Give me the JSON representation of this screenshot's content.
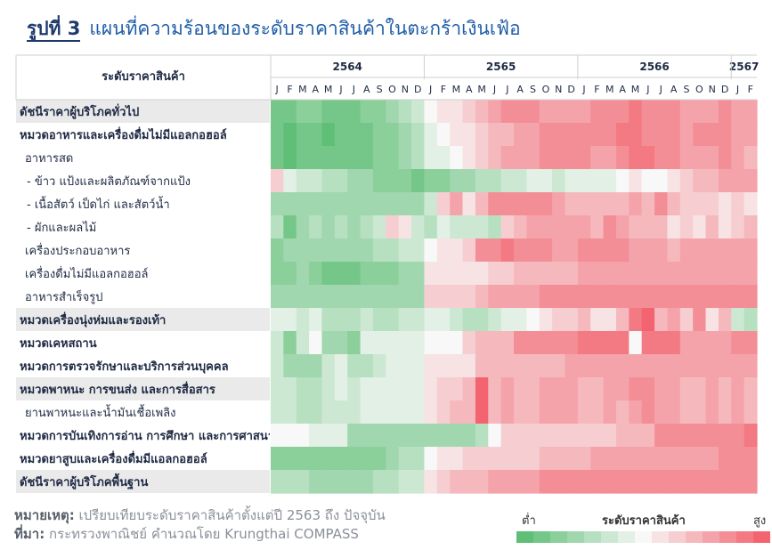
{
  "title": {
    "figure_no": "รูปที่ 3",
    "text": "แผนที่ความร้อนของระดับราคาสินค้าในตะกร้าเงินเฟ้อ"
  },
  "footer": {
    "note_label": "หมายเหตุ:",
    "note_text": "เปรียบเทียบระดับราคาสินค้าตั้งแต่ปี 2563 ถึง ปัจจุบัน",
    "source_label": "ที่มา:",
    "source_text": "กระทรวงพาณิชย์ คำนวณโดย Krungthai COMPASS"
  },
  "legend": {
    "low": "ต่ำ",
    "title": "ระดับราคาสินค้า",
    "high": "สูง",
    "steps": 15
  },
  "colors": {
    "low": "#5fbf76",
    "mid": "#f8f8f8",
    "high": "#f2646f",
    "row_label_bg": "#eaeaea"
  },
  "chart_data": {
    "type": "heatmap",
    "row_header": "ระดับราคาสินค้า",
    "years": [
      {
        "label": "2564",
        "months": 12
      },
      {
        "label": "2565",
        "months": 12
      },
      {
        "label": "2566",
        "months": 12
      },
      {
        "label": "2567",
        "months": 2
      }
    ],
    "month_labels": [
      "J",
      "F",
      "M",
      "A",
      "M",
      "J",
      "J",
      "A",
      "S",
      "O",
      "N",
      "D",
      "J",
      "F",
      "M",
      "A",
      "M",
      "J",
      "J",
      "A",
      "S",
      "O",
      "N",
      "D",
      "J",
      "F",
      "M",
      "A",
      "M",
      "J",
      "J",
      "A",
      "S",
      "O",
      "N",
      "D",
      "J",
      "F"
    ],
    "value_range": [
      0,
      14
    ],
    "rows": [
      {
        "label": "ดัชนีราคาผู้บริโภคทั่วไป",
        "bold": true,
        "shaded": true,
        "values": [
          1,
          1,
          2,
          2,
          1,
          1,
          1,
          2,
          2,
          3,
          4,
          5,
          7,
          8,
          8,
          9,
          10,
          11,
          12,
          12,
          12,
          11,
          11,
          11,
          11,
          12,
          12,
          12,
          13,
          12,
          12,
          12,
          11,
          11,
          11,
          12,
          11,
          11
        ]
      },
      {
        "label": "หมวดอาหารและเครื่องดื่มไม่มีแอลกอฮอล์",
        "bold": true,
        "shaded": false,
        "values": [
          1,
          0,
          1,
          1,
          0,
          1,
          1,
          1,
          2,
          2,
          3,
          4,
          6,
          7,
          8,
          8,
          9,
          10,
          10,
          11,
          11,
          12,
          12,
          12,
          12,
          12,
          12,
          13,
          13,
          12,
          12,
          12,
          11,
          12,
          12,
          12,
          11,
          11
        ]
      },
      {
        "label": "อาหารสด",
        "bold": false,
        "shaded": false,
        "values": [
          1,
          0,
          1,
          1,
          1,
          1,
          1,
          1,
          2,
          2,
          3,
          4,
          6,
          6,
          7,
          8,
          9,
          10,
          11,
          11,
          11,
          12,
          12,
          12,
          12,
          11,
          11,
          12,
          13,
          13,
          12,
          12,
          11,
          11,
          11,
          12,
          11,
          10
        ]
      },
      {
        "label": "- ข้าว แป้งและผลิตภัณฑ์จากแป้ง",
        "bold": false,
        "shaded": false,
        "values": [
          9,
          6,
          5,
          5,
          4,
          4,
          3,
          3,
          2,
          2,
          2,
          1,
          2,
          2,
          3,
          3,
          4,
          4,
          5,
          5,
          6,
          6,
          5,
          6,
          6,
          6,
          6,
          7,
          8,
          7,
          7,
          8,
          9,
          10,
          10,
          11,
          11,
          11
        ]
      },
      {
        "label": "- เนื้อสัตว์ เป็ดไก่ และสัตว์น้ำ",
        "bold": false,
        "shaded": false,
        "values": [
          3,
          3,
          3,
          3,
          3,
          3,
          3,
          3,
          3,
          3,
          3,
          3,
          5,
          9,
          11,
          8,
          10,
          12,
          12,
          12,
          12,
          12,
          11,
          10,
          10,
          10,
          10,
          10,
          11,
          10,
          12,
          10,
          9,
          9,
          9,
          8,
          9,
          8
        ]
      },
      {
        "label": "- ผักและผลไม้",
        "bold": false,
        "shaded": false,
        "values": [
          4,
          1,
          3,
          4,
          3,
          4,
          3,
          4,
          5,
          9,
          8,
          5,
          4,
          6,
          5,
          5,
          5,
          4,
          9,
          10,
          11,
          11,
          11,
          11,
          11,
          10,
          12,
          11,
          10,
          10,
          10,
          8,
          9,
          8,
          10,
          8,
          9,
          10
        ]
      },
      {
        "label": "เครื่องประกอบอาหาร",
        "bold": false,
        "shaded": false,
        "values": [
          2,
          3,
          3,
          3,
          3,
          3,
          3,
          3,
          4,
          4,
          5,
          5,
          7,
          8,
          8,
          9,
          12,
          12,
          13,
          12,
          12,
          12,
          11,
          11,
          12,
          12,
          12,
          12,
          11,
          11,
          11,
          10,
          11,
          11,
          11,
          11,
          11,
          11
        ]
      },
      {
        "label": "เครื่องดื่มไม่มีแอลกอฮอล์",
        "bold": false,
        "shaded": false,
        "values": [
          2,
          2,
          3,
          2,
          1,
          1,
          1,
          2,
          2,
          2,
          3,
          3,
          8,
          8,
          8,
          8,
          8,
          9,
          9,
          10,
          10,
          10,
          10,
          10,
          11,
          11,
          11,
          11,
          11,
          11,
          11,
          11,
          11,
          11,
          11,
          11,
          11,
          11
        ]
      },
      {
        "label": "อาหารสำเร็จรูป",
        "bold": false,
        "shaded": false,
        "values": [
          3,
          3,
          3,
          3,
          3,
          3,
          3,
          3,
          3,
          3,
          3,
          3,
          9,
          9,
          9,
          9,
          10,
          11,
          11,
          11,
          11,
          12,
          12,
          12,
          12,
          12,
          12,
          12,
          12,
          12,
          12,
          12,
          12,
          12,
          12,
          12,
          12,
          12
        ]
      },
      {
        "label": "หมวดเครื่องนุ่งห่มและรองเท้า",
        "bold": true,
        "shaded": true,
        "values": [
          6,
          6,
          5,
          6,
          4,
          4,
          4,
          5,
          4,
          4,
          5,
          5,
          6,
          6,
          5,
          4,
          4,
          5,
          6,
          6,
          7,
          8,
          9,
          9,
          10,
          8,
          8,
          10,
          13,
          14,
          10,
          11,
          9,
          12,
          8,
          10,
          5,
          4
        ]
      },
      {
        "label": "หมวดเคหสถาน",
        "bold": true,
        "shaded": false,
        "values": [
          5,
          2,
          5,
          7,
          3,
          3,
          2,
          6,
          6,
          6,
          6,
          6,
          7,
          7,
          7,
          9,
          10,
          10,
          10,
          12,
          12,
          12,
          12,
          12,
          13,
          13,
          13,
          13,
          7,
          13,
          13,
          13,
          11,
          11,
          11,
          11,
          12,
          12
        ]
      },
      {
        "label": "หมวดการตรวจรักษาและบริการส่วนบุคคล",
        "bold": true,
        "shaded": false,
        "values": [
          5,
          3,
          3,
          3,
          5,
          6,
          4,
          4,
          5,
          6,
          6,
          6,
          8,
          8,
          8,
          8,
          10,
          10,
          10,
          10,
          10,
          10,
          10,
          11,
          11,
          11,
          11,
          11,
          11,
          11,
          11,
          11,
          11,
          11,
          11,
          11,
          11,
          11
        ]
      },
      {
        "label": "หมวดพาหนะ การขนส่ง และการสื่อสาร",
        "bold": true,
        "shaded": true,
        "values": [
          5,
          5,
          4,
          4,
          5,
          6,
          5,
          6,
          6,
          6,
          6,
          6,
          8,
          9,
          9,
          10,
          14,
          10,
          11,
          10,
          10,
          11,
          11,
          11,
          10,
          10,
          11,
          11,
          12,
          12,
          11,
          11,
          10,
          10,
          11,
          10,
          11,
          10
        ]
      },
      {
        "label": "ยานพาหนะและน้ำมันเชื้อเพลิง",
        "bold": false,
        "shaded": false,
        "values": [
          5,
          5,
          4,
          4,
          5,
          5,
          5,
          6,
          6,
          6,
          6,
          6,
          8,
          9,
          10,
          10,
          14,
          10,
          11,
          10,
          10,
          11,
          11,
          11,
          10,
          10,
          11,
          10,
          11,
          12,
          11,
          11,
          10,
          10,
          11,
          10,
          11,
          10
        ]
      },
      {
        "label": "หมวดการบันเทิงการอ่าน การศึกษา และการศาสนา",
        "bold": true,
        "shaded": false,
        "values": [
          7,
          7,
          7,
          6,
          6,
          6,
          3,
          3,
          3,
          3,
          3,
          3,
          3,
          3,
          3,
          3,
          4,
          7,
          9,
          9,
          9,
          9,
          9,
          9,
          9,
          9,
          9,
          10,
          10,
          10,
          12,
          12,
          12,
          12,
          12,
          12,
          12,
          13
        ]
      },
      {
        "label": "หมวดยาสูบและเครื่องดื่มมีแอลกอฮอล์",
        "bold": true,
        "shaded": false,
        "values": [
          2,
          2,
          2,
          2,
          2,
          2,
          2,
          2,
          2,
          3,
          4,
          4,
          7,
          8,
          8,
          9,
          9,
          9,
          9,
          9,
          9,
          10,
          10,
          10,
          10,
          11,
          11,
          11,
          11,
          11,
          11,
          11,
          11,
          11,
          11,
          12,
          12,
          12
        ]
      },
      {
        "label": "ดัชนีราคาผู้บริโภคพื้นฐาน",
        "bold": true,
        "shaded": true,
        "values": [
          4,
          4,
          4,
          3,
          3,
          3,
          3,
          3,
          4,
          4,
          5,
          5,
          8,
          9,
          10,
          10,
          10,
          11,
          11,
          11,
          11,
          12,
          12,
          12,
          12,
          12,
          12,
          12,
          12,
          12,
          12,
          12,
          12,
          12,
          12,
          12,
          12,
          12
        ]
      }
    ]
  }
}
